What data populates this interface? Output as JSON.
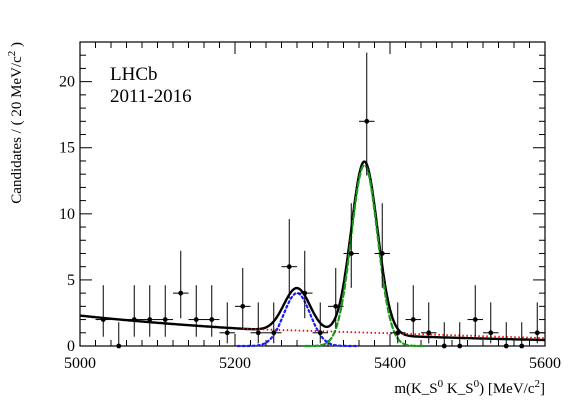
{
  "chart_data": {
    "type": "scatter",
    "xlabel": "m(K_S^0 K_S^0) [MeV/c^2]",
    "ylabel": "Candidates / ( 20 MeV/c^2 )",
    "xlim": [
      5000,
      5600
    ],
    "ylim": [
      0,
      23
    ],
    "x_ticks": [
      5000,
      5200,
      5400,
      5600
    ],
    "y_ticks": [
      0,
      5,
      10,
      15,
      20
    ],
    "grid": false,
    "legend": {
      "position": "top-left",
      "lines": [
        "LHCb",
        "2011-2016"
      ]
    },
    "points": [
      {
        "x": 5030,
        "y": 2,
        "err_low": 1.3,
        "err_high": 2.6
      },
      {
        "x": 5050,
        "y": 0,
        "err_low": 0,
        "err_high": 1.8
      },
      {
        "x": 5070,
        "y": 2,
        "err_low": 1.3,
        "err_high": 2.6
      },
      {
        "x": 5090,
        "y": 2,
        "err_low": 1.3,
        "err_high": 2.6
      },
      {
        "x": 5110,
        "y": 2,
        "err_low": 1.3,
        "err_high": 2.6
      },
      {
        "x": 5130,
        "y": 4,
        "err_low": 1.9,
        "err_high": 3.2
      },
      {
        "x": 5150,
        "y": 2,
        "err_low": 1.3,
        "err_high": 2.6
      },
      {
        "x": 5170,
        "y": 2,
        "err_low": 1.3,
        "err_high": 2.6
      },
      {
        "x": 5190,
        "y": 1,
        "err_low": 0.8,
        "err_high": 2.3
      },
      {
        "x": 5210,
        "y": 3,
        "err_low": 1.6,
        "err_high": 2.9
      },
      {
        "x": 5230,
        "y": 1,
        "err_low": 0.8,
        "err_high": 2.3
      },
      {
        "x": 5250,
        "y": 1,
        "err_low": 0.8,
        "err_high": 2.3
      },
      {
        "x": 5270,
        "y": 6,
        "err_low": 2.4,
        "err_high": 3.6
      },
      {
        "x": 5290,
        "y": 4,
        "err_low": 1.9,
        "err_high": 3.2
      },
      {
        "x": 5310,
        "y": 1,
        "err_low": 0.8,
        "err_high": 2.3
      },
      {
        "x": 5330,
        "y": 3,
        "err_low": 1.6,
        "err_high": 2.9
      },
      {
        "x": 5350,
        "y": 7,
        "err_low": 2.6,
        "err_high": 3.8
      },
      {
        "x": 5370,
        "y": 17,
        "err_low": 4.1,
        "err_high": 5.2
      },
      {
        "x": 5390,
        "y": 7,
        "err_low": 2.6,
        "err_high": 3.8
      },
      {
        "x": 5410,
        "y": 1,
        "err_low": 0.8,
        "err_high": 2.3
      },
      {
        "x": 5430,
        "y": 2,
        "err_low": 1.3,
        "err_high": 2.6
      },
      {
        "x": 5450,
        "y": 1,
        "err_low": 0.8,
        "err_high": 2.3
      },
      {
        "x": 5470,
        "y": 0,
        "err_low": 0,
        "err_high": 1.8
      },
      {
        "x": 5490,
        "y": 0,
        "err_low": 0,
        "err_high": 1.8
      },
      {
        "x": 5510,
        "y": 2,
        "err_low": 1.3,
        "err_high": 2.6
      },
      {
        "x": 5530,
        "y": 1,
        "err_low": 0.8,
        "err_high": 2.3
      },
      {
        "x": 5550,
        "y": 0,
        "err_low": 0,
        "err_high": 1.8
      },
      {
        "x": 5570,
        "y": 0,
        "err_low": 0,
        "err_high": 1.8
      },
      {
        "x": 5590,
        "y": 1,
        "err_low": 0.8,
        "err_high": 2.3
      }
    ],
    "model_components": [
      {
        "component": "total",
        "color": "#000000",
        "line": "solid",
        "background": {
          "a": 2.3,
          "k": 0.0027
        },
        "peaks": [
          {
            "mean": 5280,
            "sigma": 17,
            "amplitude": 3.3
          },
          {
            "mean": 5367,
            "sigma": 17,
            "amplitude": 13.1
          }
        ]
      },
      {
        "component": "peak-5280",
        "color": "#1a1aff",
        "line": "dotted",
        "mean": 5280,
        "sigma": 17,
        "amplitude": 4.0
      },
      {
        "component": "peak-5367",
        "color": "#1a9a1a",
        "line": "dashed",
        "mean": 5367,
        "sigma": 17,
        "amplitude": 13.7
      },
      {
        "component": "combinatorial",
        "color": "#ff0000",
        "line": "dotted",
        "y_start": 1.3,
        "y_end": 0.6,
        "x_start": 5210
      }
    ]
  }
}
